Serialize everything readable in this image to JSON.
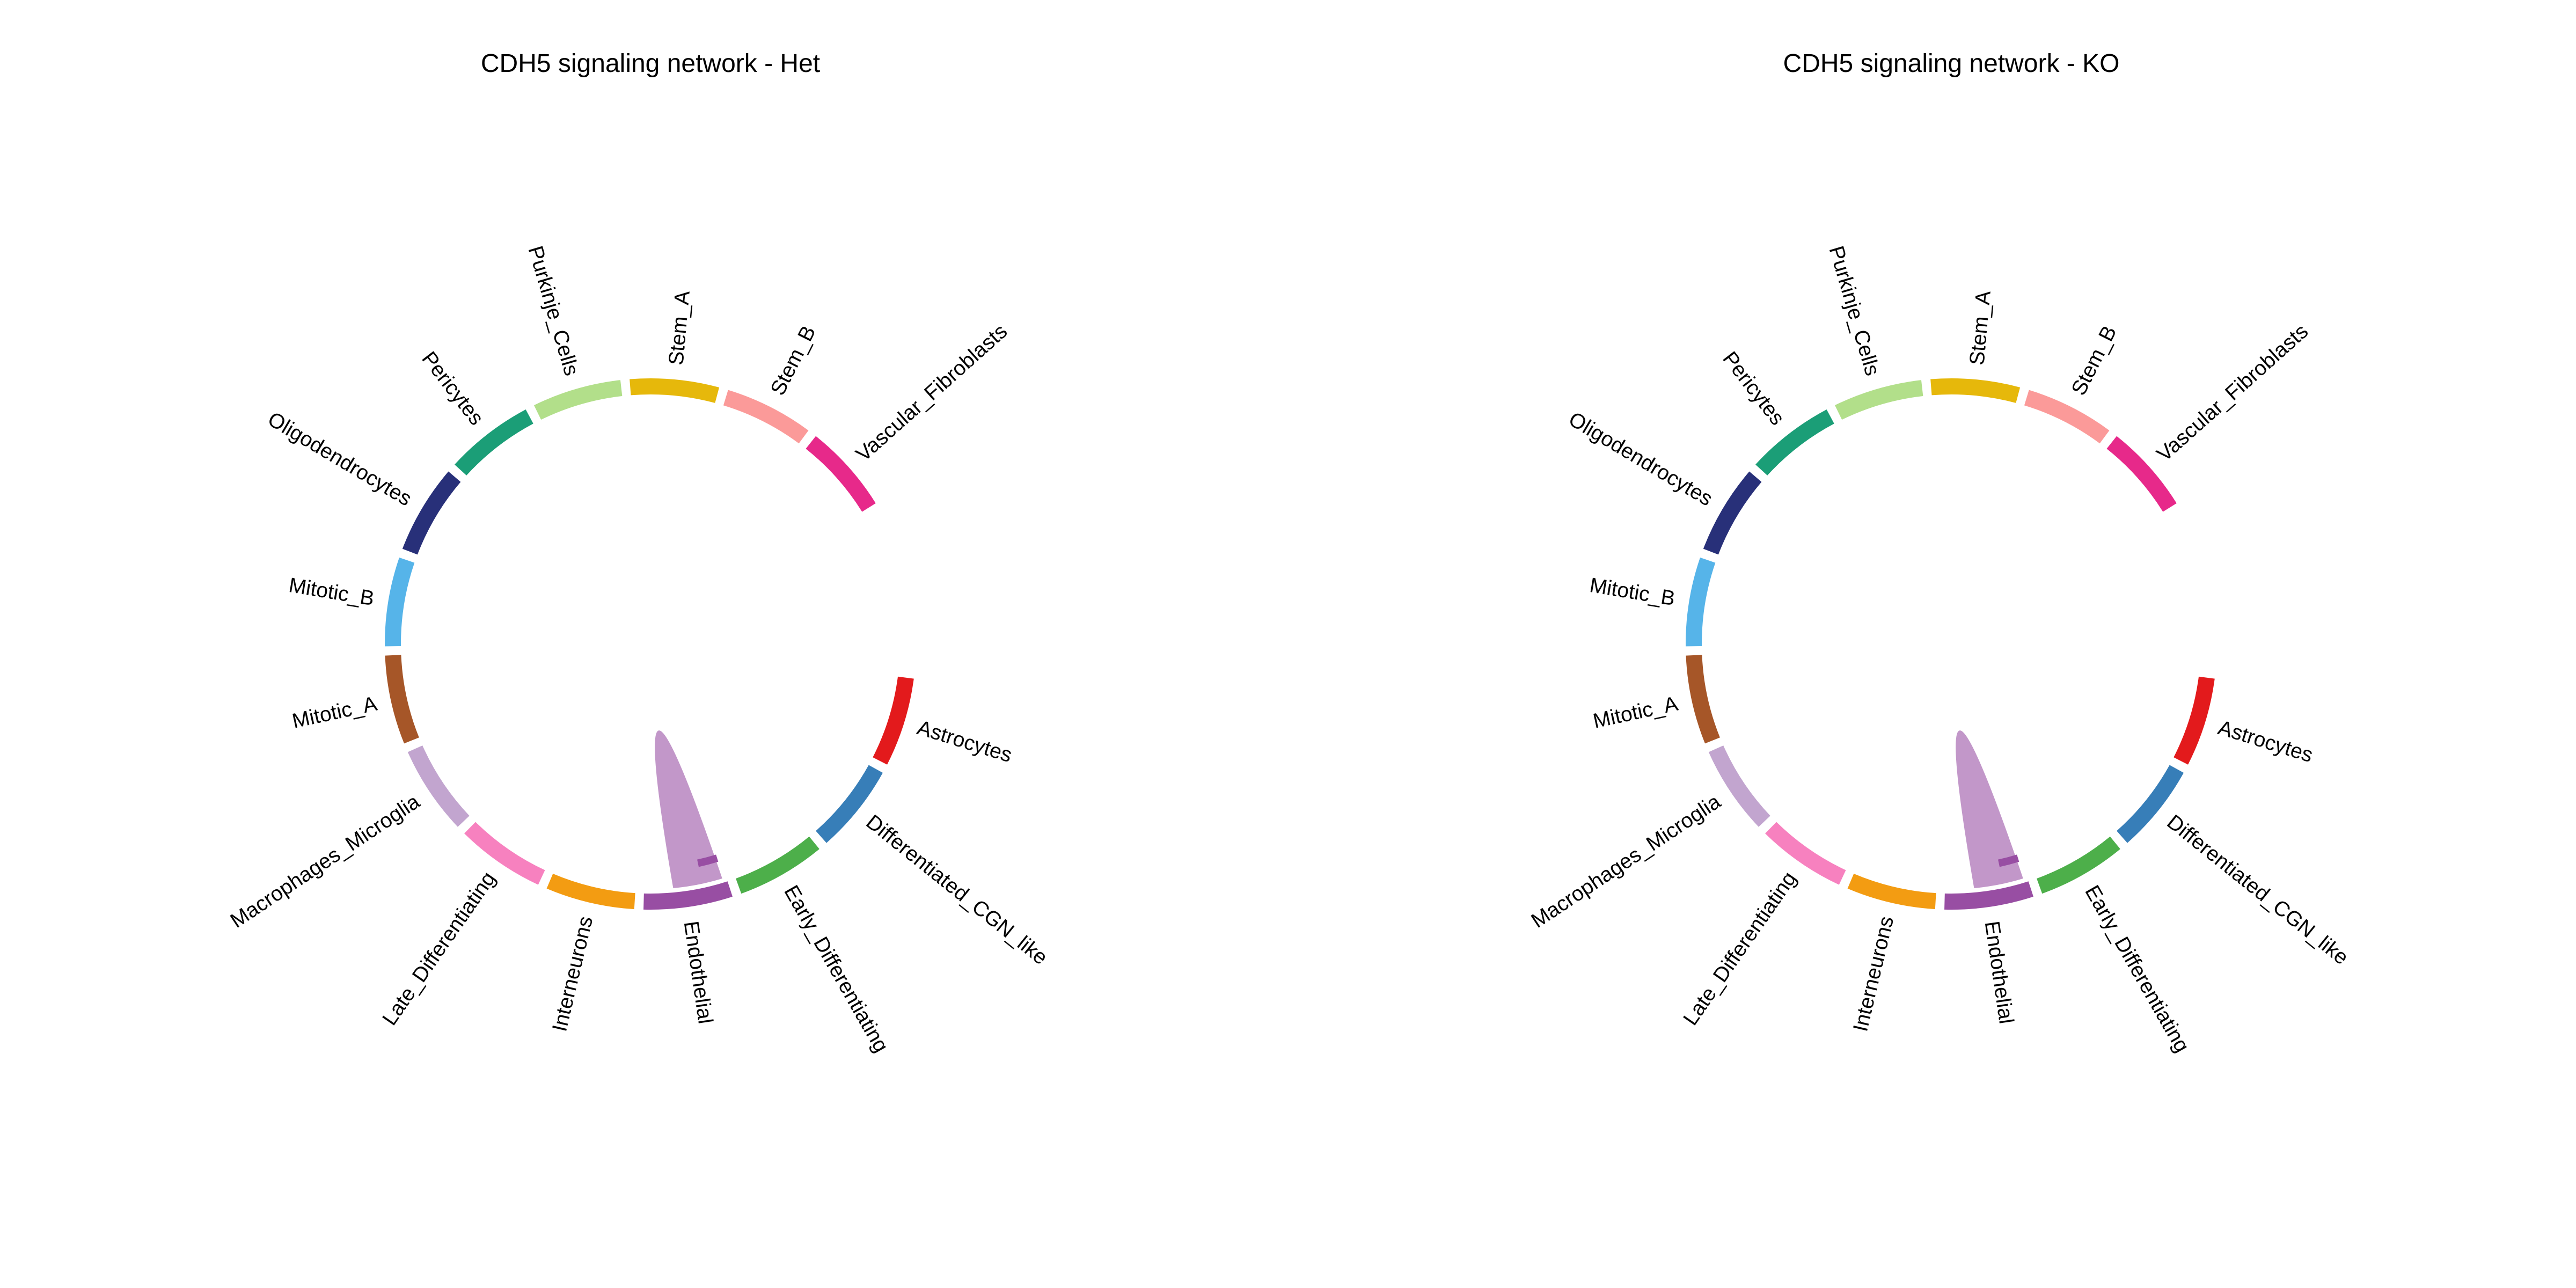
{
  "panels": [
    {
      "title": "CDH5 signaling network - Het"
    },
    {
      "title": "CDH5 signaling network - KO"
    }
  ],
  "groups": [
    {
      "name": "Astrocytes",
      "color": "#e31a1c"
    },
    {
      "name": "Differentiated_CGN_like",
      "color": "#377eb8"
    },
    {
      "name": "Early_Differentiating",
      "color": "#4daf4a"
    },
    {
      "name": "Endothelial",
      "color": "#984ea3"
    },
    {
      "name": "Interneurons",
      "color": "#f39c12"
    },
    {
      "name": "Late_Differentiating",
      "color": "#f781bf"
    },
    {
      "name": "Macrophages_Microglia",
      "color": "#c2a5cf"
    },
    {
      "name": "Mitotic_A",
      "color": "#a65628"
    },
    {
      "name": "Mitotic_B",
      "color": "#56b4e9"
    },
    {
      "name": "Oligodendrocytes",
      "color": "#283079"
    },
    {
      "name": "Pericytes",
      "color": "#1b9e77"
    },
    {
      "name": "Purkinje_Cells",
      "color": "#b2df8a"
    },
    {
      "name": "Stem_A",
      "color": "#e6b80b"
    },
    {
      "name": "Stem_B",
      "color": "#fb9a99"
    },
    {
      "name": "Vascular_Fibroblasts",
      "color": "#e7298a"
    }
  ],
  "links": [
    {
      "source": "Endothelial",
      "target": "Endothelial",
      "color": "#c297c9"
    }
  ]
}
